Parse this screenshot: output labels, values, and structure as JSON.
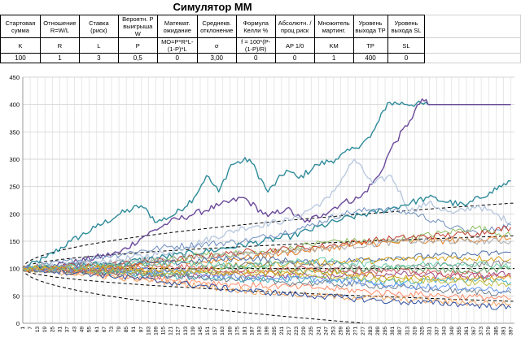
{
  "title": "Симулятор ММ",
  "params": {
    "headers": [
      "Стартовая сумма",
      "Отношение R=W/L",
      "Ставка (риск)",
      "Вероятн. Р выигрыша W",
      "Математ. ожидание",
      "Среднекв. отклонение",
      "Формула Келли %",
      "Абсолютн. /проц риск",
      "Множитель мартинг.",
      "Уровень выхода TP",
      "Уровень выхода SL"
    ],
    "symbols": [
      "K",
      "R",
      "L",
      "P",
      "MO=P*R*L-(1-P)*L",
      "σ",
      "f = 100*(P-(1-P)/R)",
      "AP 1/0",
      "KM",
      "TP",
      "SL"
    ],
    "values": [
      "100",
      "1",
      "3",
      "0,5",
      "0",
      "3,00",
      "0",
      "0",
      "1",
      "400",
      "0"
    ]
  },
  "chart_data": {
    "type": "line",
    "title": "",
    "xlabel": "",
    "ylabel": "",
    "x_start": 1,
    "x_end": 400,
    "x_tick_labels": [
      1,
      7,
      13,
      19,
      25,
      31,
      37,
      43,
      49,
      55,
      61,
      67,
      73,
      79,
      85,
      91,
      97,
      103,
      109,
      115,
      121,
      127,
      133,
      139,
      145,
      151,
      157,
      163,
      169,
      175,
      181,
      187,
      193,
      199,
      205,
      211,
      217,
      223,
      229,
      235,
      241,
      247,
      253,
      259,
      265,
      271,
      277,
      283,
      289,
      295,
      301,
      307,
      313,
      319,
      325,
      331,
      337,
      343,
      349,
      355,
      361,
      367,
      373,
      379,
      385,
      391,
      397
    ],
    "ylim": [
      0,
      450
    ],
    "y_ticks": [
      0,
      50,
      100,
      150,
      200,
      250,
      300,
      350,
      400,
      450
    ],
    "grid": true,
    "legend": "none",
    "take_profit_level": 400,
    "stop_loss_level": 0,
    "envelope": {
      "center": 100,
      "description_ref": "dashed curves",
      "sigma_lines": [
        {
          "multiplier": 1,
          "style": "dashed"
        },
        {
          "multiplier": 2,
          "style": "dashed"
        }
      ],
      "sigma_per_step": 3
    },
    "series": [
      {
        "color": "#2e8b9a",
        "points": [
          [
            1,
            100
          ],
          [
            20,
            120
          ],
          [
            40,
            150
          ],
          [
            60,
            175
          ],
          [
            80,
            200
          ],
          [
            97,
            215
          ],
          [
            110,
            185
          ],
          [
            125,
            200
          ],
          [
            140,
            230
          ],
          [
            150,
            270
          ],
          [
            160,
            240
          ],
          [
            170,
            290
          ],
          [
            185,
            300
          ],
          [
            200,
            240
          ],
          [
            215,
            280
          ],
          [
            225,
            265
          ],
          [
            240,
            290
          ],
          [
            255,
            300
          ],
          [
            270,
            320
          ],
          [
            283,
            340
          ],
          [
            290,
            370
          ],
          [
            297,
            403
          ],
          [
            330,
            400
          ],
          [
            397,
            400
          ]
        ]
      },
      {
        "color": "#6b4a9a",
        "points": [
          [
            1,
            100
          ],
          [
            40,
            110
          ],
          [
            80,
            130
          ],
          [
            100,
            160
          ],
          [
            120,
            185
          ],
          [
            140,
            200
          ],
          [
            160,
            215
          ],
          [
            180,
            230
          ],
          [
            200,
            195
          ],
          [
            215,
            210
          ],
          [
            230,
            185
          ],
          [
            245,
            200
          ],
          [
            260,
            220
          ],
          [
            275,
            230
          ],
          [
            290,
            270
          ],
          [
            300,
            320
          ],
          [
            315,
            370
          ],
          [
            325,
            410
          ],
          [
            330,
            400
          ],
          [
            397,
            400
          ]
        ]
      },
      {
        "color": "#b9c9e0",
        "points": [
          [
            1,
            100
          ],
          [
            60,
            110
          ],
          [
            120,
            130
          ],
          [
            180,
            175
          ],
          [
            220,
            190
          ],
          [
            250,
            230
          ],
          [
            270,
            300
          ],
          [
            285,
            255
          ],
          [
            300,
            270
          ],
          [
            315,
            205
          ],
          [
            330,
            220
          ],
          [
            350,
            200
          ],
          [
            370,
            215
          ],
          [
            397,
            185
          ]
        ]
      },
      {
        "color": "#2e8b9a",
        "points": [
          [
            1,
            100
          ],
          [
            80,
            110
          ],
          [
            160,
            135
          ],
          [
            220,
            160
          ],
          [
            260,
            190
          ],
          [
            300,
            210
          ],
          [
            330,
            230
          ],
          [
            360,
            215
          ],
          [
            380,
            240
          ],
          [
            397,
            260
          ]
        ]
      },
      {
        "color": "#6f8fbf",
        "points": [
          [
            1,
            100
          ],
          [
            60,
            120
          ],
          [
            120,
            140
          ],
          [
            180,
            150
          ],
          [
            230,
            175
          ],
          [
            260,
            200
          ],
          [
            290,
            210
          ],
          [
            320,
            200
          ],
          [
            350,
            175
          ],
          [
            370,
            165
          ],
          [
            397,
            180
          ]
        ]
      },
      {
        "color": "#8fbf5f",
        "points": [
          [
            1,
            100
          ],
          [
            50,
            95
          ],
          [
            100,
            110
          ],
          [
            150,
            125
          ],
          [
            200,
            130
          ],
          [
            250,
            150
          ],
          [
            300,
            150
          ],
          [
            340,
            165
          ],
          [
            370,
            175
          ],
          [
            397,
            160
          ]
        ]
      },
      {
        "color": "#c0392b",
        "points": [
          [
            1,
            100
          ],
          [
            60,
            105
          ],
          [
            120,
            115
          ],
          [
            180,
            130
          ],
          [
            240,
            140
          ],
          [
            300,
            155
          ],
          [
            340,
            160
          ],
          [
            370,
            165
          ],
          [
            397,
            175
          ]
        ]
      },
      {
        "color": "#e67e22",
        "points": [
          [
            1,
            100
          ],
          [
            50,
            95
          ],
          [
            100,
            105
          ],
          [
            160,
            115
          ],
          [
            220,
            130
          ],
          [
            280,
            145
          ],
          [
            330,
            150
          ],
          [
            397,
            155
          ]
        ]
      },
      {
        "color": "#a9a9a9",
        "points": [
          [
            1,
            100
          ],
          [
            60,
            110
          ],
          [
            130,
            120
          ],
          [
            200,
            130
          ],
          [
            260,
            140
          ],
          [
            310,
            150
          ],
          [
            360,
            150
          ],
          [
            397,
            150
          ]
        ]
      },
      {
        "color": "#4a6fa5",
        "points": [
          [
            1,
            100
          ],
          [
            60,
            105
          ],
          [
            120,
            110
          ],
          [
            180,
            120
          ],
          [
            240,
            110
          ],
          [
            300,
            120
          ],
          [
            360,
            125
          ],
          [
            397,
            130
          ]
        ]
      },
      {
        "color": "#d4a017",
        "points": [
          [
            1,
            100
          ],
          [
            50,
            100
          ],
          [
            110,
            95
          ],
          [
            170,
            105
          ],
          [
            230,
            110
          ],
          [
            290,
            115
          ],
          [
            340,
            120
          ],
          [
            397,
            118
          ]
        ]
      },
      {
        "color": "#7f7f7f",
        "points": [
          [
            1,
            100
          ],
          [
            70,
            95
          ],
          [
            140,
            100
          ],
          [
            210,
            110
          ],
          [
            280,
            100
          ],
          [
            340,
            105
          ],
          [
            397,
            110
          ]
        ]
      },
      {
        "color": "#5fa05f",
        "points": [
          [
            1,
            100
          ],
          [
            60,
            95
          ],
          [
            120,
            90
          ],
          [
            180,
            100
          ],
          [
            240,
            95
          ],
          [
            300,
            100
          ],
          [
            360,
            95
          ],
          [
            397,
            100
          ]
        ]
      },
      {
        "color": "#9a4a8a",
        "points": [
          [
            1,
            100
          ],
          [
            60,
            92
          ],
          [
            120,
            85
          ],
          [
            180,
            90
          ],
          [
            240,
            85
          ],
          [
            300,
            90
          ],
          [
            360,
            85
          ],
          [
            397,
            90
          ]
        ]
      },
      {
        "color": "#3fb0c0",
        "points": [
          [
            1,
            100
          ],
          [
            60,
            95
          ],
          [
            130,
            85
          ],
          [
            190,
            80
          ],
          [
            250,
            80
          ],
          [
            310,
            75
          ],
          [
            370,
            80
          ],
          [
            397,
            75
          ]
        ]
      },
      {
        "color": "#ff8c69",
        "points": [
          [
            1,
            100
          ],
          [
            60,
            90
          ],
          [
            120,
            80
          ],
          [
            180,
            70
          ],
          [
            240,
            65
          ],
          [
            300,
            55
          ],
          [
            350,
            50
          ],
          [
            397,
            45
          ]
        ]
      },
      {
        "color": "#f4a460",
        "points": [
          [
            1,
            100
          ],
          [
            60,
            88
          ],
          [
            120,
            75
          ],
          [
            180,
            60
          ],
          [
            240,
            50
          ],
          [
            300,
            45
          ],
          [
            340,
            40
          ],
          [
            397,
            35
          ]
        ]
      },
      {
        "color": "#2f4fa0",
        "points": [
          [
            1,
            100
          ],
          [
            60,
            90
          ],
          [
            120,
            75
          ],
          [
            180,
            60
          ],
          [
            240,
            50
          ],
          [
            300,
            40
          ],
          [
            360,
            35
          ],
          [
            397,
            28
          ]
        ]
      },
      {
        "color": "#708090",
        "points": [
          [
            1,
            100
          ],
          [
            70,
            92
          ],
          [
            140,
            85
          ],
          [
            210,
            75
          ],
          [
            280,
            70
          ],
          [
            340,
            60
          ],
          [
            397,
            55
          ]
        ]
      },
      {
        "color": "#bfbf3f",
        "points": [
          [
            1,
            100
          ],
          [
            60,
            96
          ],
          [
            120,
            90
          ],
          [
            180,
            95
          ],
          [
            240,
            85
          ],
          [
            300,
            80
          ],
          [
            360,
            75
          ],
          [
            397,
            70
          ]
        ]
      },
      {
        "color": "#cd5c5c",
        "points": [
          [
            1,
            100
          ],
          [
            60,
            98
          ],
          [
            120,
            105
          ],
          [
            180,
            95
          ],
          [
            240,
            100
          ],
          [
            300,
            95
          ],
          [
            360,
            90
          ],
          [
            397,
            85
          ]
        ]
      },
      {
        "color": "#6495ed",
        "points": [
          [
            1,
            100
          ],
          [
            60,
            100
          ],
          [
            120,
            95
          ],
          [
            180,
            85
          ],
          [
            240,
            80
          ],
          [
            300,
            70
          ],
          [
            360,
            65
          ],
          [
            397,
            60
          ]
        ]
      },
      {
        "color": "#66cdaa",
        "points": [
          [
            1,
            100
          ],
          [
            60,
            105
          ],
          [
            120,
            110
          ],
          [
            180,
            105
          ],
          [
            240,
            115
          ],
          [
            300,
            105
          ],
          [
            360,
            110
          ],
          [
            397,
            105
          ]
        ]
      },
      {
        "color": "#daa520",
        "points": [
          [
            1,
            100
          ],
          [
            60,
            102
          ],
          [
            120,
            98
          ],
          [
            180,
            90
          ],
          [
            240,
            95
          ],
          [
            300,
            85
          ],
          [
            360,
            80
          ],
          [
            397,
            82
          ]
        ]
      }
    ]
  }
}
